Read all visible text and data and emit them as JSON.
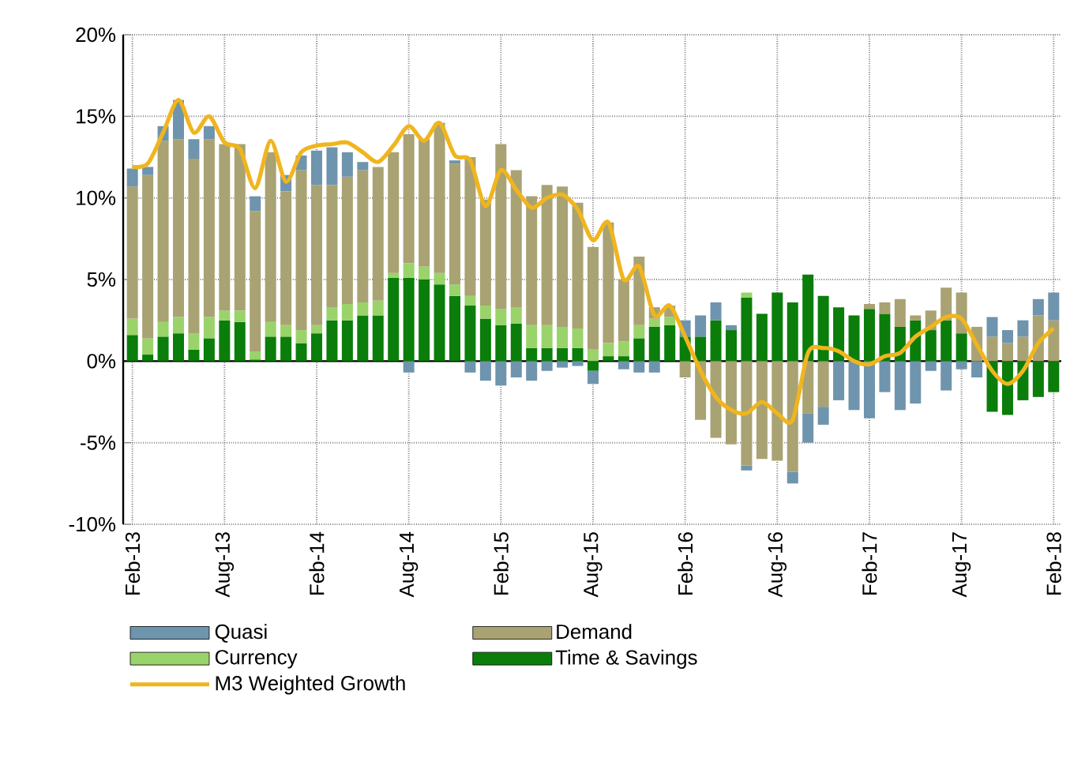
{
  "chart_data": {
    "type": "bar",
    "stacked": true,
    "categories": [
      "Feb-13",
      null,
      null,
      null,
      null,
      null,
      "Aug-13",
      null,
      null,
      null,
      null,
      null,
      "Feb-14",
      null,
      null,
      null,
      null,
      null,
      "Aug-14",
      null,
      null,
      null,
      null,
      null,
      "Feb-15",
      null,
      null,
      null,
      null,
      null,
      "Aug-15",
      null,
      null,
      null,
      null,
      null,
      "Feb-16",
      null,
      null,
      null,
      null,
      null,
      "Aug-16",
      null,
      null,
      null,
      null,
      null,
      "Feb-17",
      null,
      null,
      null,
      null,
      null,
      "Aug-17",
      null,
      null,
      null,
      null,
      null,
      "Feb-18"
    ],
    "series": [
      {
        "name": "Time & Savings",
        "color": "#0a7d0a",
        "values": [
          1.6,
          0.4,
          1.5,
          1.7,
          0.7,
          1.4,
          2.5,
          2.4,
          0.1,
          1.5,
          1.5,
          1.1,
          1.7,
          2.5,
          2.5,
          2.8,
          2.8,
          5.1,
          5.1,
          5.0,
          4.7,
          4.0,
          3.4,
          2.6,
          2.2,
          2.3,
          0.8,
          0.8,
          0.8,
          0.8,
          -0.6,
          0.3,
          0.3,
          1.4,
          2.1,
          2.2,
          1.5,
          1.5,
          2.5,
          1.9,
          3.9,
          2.9,
          4.2,
          3.6,
          5.3,
          4.0,
          3.3,
          2.8,
          3.2,
          2.9,
          2.1,
          2.5,
          1.9,
          2.5,
          1.7,
          null,
          -3.1,
          -3.3,
          -2.4,
          -2.2,
          -1.9
        ]
      },
      {
        "name": "Currency",
        "color": "#99d36a",
        "values": [
          1.0,
          1.0,
          0.9,
          1.0,
          1.0,
          1.3,
          0.6,
          0.7,
          0.5,
          0.9,
          0.7,
          0.8,
          0.5,
          0.8,
          1.0,
          0.8,
          0.9,
          0.3,
          0.9,
          0.8,
          0.7,
          0.7,
          0.6,
          0.8,
          1.0,
          1.0,
          1.4,
          1.4,
          1.3,
          1.2,
          0.7,
          0.8,
          0.9,
          0.8,
          0.5,
          0.5,
          null,
          null,
          null,
          null,
          0.3,
          null,
          null,
          null,
          null,
          null,
          null,
          null,
          null,
          null,
          null,
          null,
          null,
          null,
          null,
          null,
          null,
          null,
          null,
          null,
          null
        ]
      },
      {
        "name": "Demand",
        "color": "#a9a273",
        "values": [
          8.1,
          10.0,
          11.1,
          10.9,
          10.7,
          10.9,
          10.2,
          10.2,
          8.6,
          10.4,
          8.2,
          9.8,
          8.6,
          7.5,
          7.8,
          8.1,
          8.2,
          7.4,
          7.9,
          7.8,
          9.2,
          7.4,
          8.5,
          6.5,
          10.1,
          8.4,
          7.9,
          8.6,
          8.6,
          7.7,
          6.3,
          7.4,
          3.8,
          4.2,
          0.7,
          0.7,
          -1.0,
          -3.6,
          -4.7,
          -5.1,
          -6.4,
          -6.0,
          -6.1,
          -6.8,
          -3.2,
          -2.8,
          null,
          null,
          0.3,
          0.7,
          1.7,
          0.3,
          1.2,
          2.0,
          2.5,
          2.1,
          1.5,
          1.1,
          1.5,
          2.8,
          2.5
        ]
      },
      {
        "name": "Quasi",
        "color": "#6f94ad",
        "values": [
          1.1,
          0.5,
          0.9,
          2.4,
          1.2,
          0.8,
          null,
          null,
          0.9,
          null,
          1.0,
          0.9,
          2.1,
          2.3,
          1.5,
          0.5,
          null,
          null,
          -0.7,
          null,
          null,
          0.2,
          -0.7,
          -1.2,
          -1.5,
          -1.0,
          -1.2,
          -0.6,
          -0.4,
          -0.3,
          -0.8,
          null,
          -0.5,
          -0.7,
          -0.7,
          null,
          1.0,
          1.3,
          1.1,
          0.3,
          -0.3,
          null,
          null,
          -0.7,
          -1.8,
          -1.1,
          -2.4,
          -3.0,
          -3.5,
          -1.9,
          -3.0,
          -2.6,
          -0.6,
          -1.8,
          -0.5,
          -1.0,
          1.2,
          0.8,
          1.0,
          1.0,
          1.7
        ]
      },
      {
        "name": "M3 Weighted Growth",
        "type": "line",
        "color": "#f0b51e",
        "values": [
          11.9,
          12.1,
          14.0,
          16.0,
          14.0,
          15.0,
          13.4,
          13.0,
          10.6,
          13.5,
          11.0,
          12.8,
          13.2,
          13.3,
          13.4,
          12.8,
          12.2,
          13.2,
          14.4,
          13.5,
          14.6,
          12.6,
          12.3,
          9.5,
          11.7,
          10.5,
          9.4,
          10.0,
          10.2,
          9.3,
          7.4,
          8.5,
          5.0,
          5.8,
          2.8,
          3.4,
          1.5,
          -0.6,
          -2.2,
          -3.0,
          -3.2,
          -2.5,
          -3.2,
          -3.6,
          0.5,
          0.8,
          0.6,
          0,
          -0.2,
          0.3,
          0.5,
          1.5,
          2.1,
          2.7,
          2.6,
          1.0,
          -0.6,
          -1.4,
          -0.6,
          1.1,
          2.0
        ]
      }
    ],
    "ylim": [
      -10,
      20
    ],
    "yticks": [
      {
        "value": -10,
        "label": "-10%"
      },
      {
        "value": -5,
        "label": "-5%"
      },
      {
        "value": 0,
        "label": "0%"
      },
      {
        "value": 5,
        "label": "5%"
      },
      {
        "value": 10,
        "label": "10%"
      },
      {
        "value": 15,
        "label": "15%"
      },
      {
        "value": 20,
        "label": "20%"
      }
    ],
    "grid": true,
    "legend": "bottom"
  }
}
